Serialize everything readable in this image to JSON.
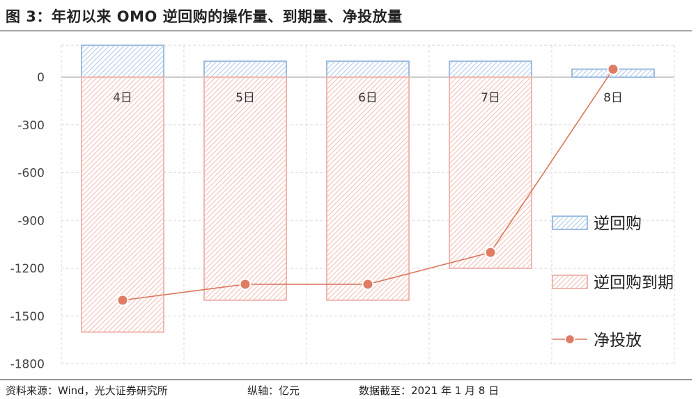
{
  "header": {
    "title": "图 3：年初以来 OMO 逆回购的操作量、到期量、净投放量"
  },
  "footer": {
    "source": "资料来源：Wind，光大证券研究所",
    "unit": "纵轴：亿元",
    "date": "数据截至：2021 年 1 月 8 日"
  },
  "colors": {
    "blue": "#9dbde2",
    "pink": "#f0b8b0",
    "line": "#d9775c",
    "dot": "#e07b64"
  },
  "chart_data": {
    "type": "bar",
    "title": "图 3：年初以来 OMO 逆回购的操作量、到期量、净投放量",
    "categories": [
      "4日",
      "5日",
      "6日",
      "7日",
      "8日"
    ],
    "series": [
      {
        "name": "逆回购",
        "type": "bar",
        "values": [
          200,
          100,
          100,
          100,
          50
        ]
      },
      {
        "name": "逆回购到期",
        "type": "bar",
        "values": [
          -1600,
          -1400,
          -1400,
          -1200,
          0
        ]
      },
      {
        "name": "净投放",
        "type": "line",
        "values": [
          -1400,
          -1300,
          -1300,
          -1100,
          50
        ]
      }
    ],
    "ylim": [
      -1800,
      200
    ],
    "yticks": [
      0,
      -300,
      -600,
      -900,
      -1200,
      -1500,
      -1800
    ],
    "ytick_labels": [
      "0",
      "-300",
      "-600",
      "-900",
      "-1200",
      "-1500",
      "-1800"
    ],
    "legend_position": "right",
    "grid": true
  }
}
